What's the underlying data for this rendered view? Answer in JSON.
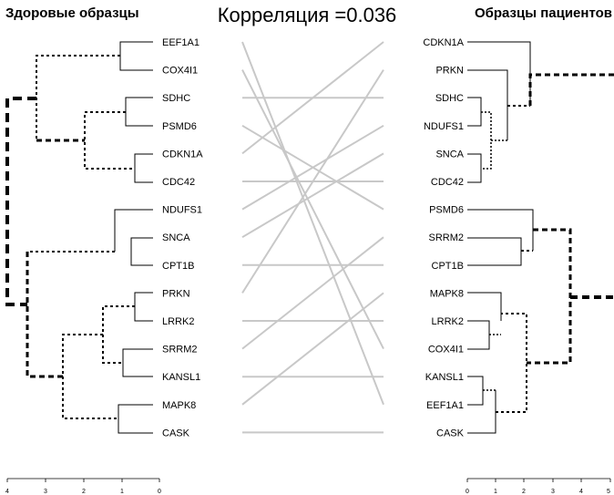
{
  "left_title": "Здоровые образцы",
  "right_title": "Образцы пациентов",
  "center_title": "Корреляция =0.036",
  "left_labels": [
    "EEF1A1",
    "COX4I1",
    "SDHC",
    "PSMD6",
    "CDKN1A",
    "CDC42",
    "NDUFS1",
    "SNCA",
    "CPT1B",
    "PRKN",
    "LRRK2",
    "SRRM2",
    "KANSL1",
    "MAPK8",
    "CASK"
  ],
  "right_labels": [
    "CDKN1A",
    "PRKN",
    "SDHC",
    "NDUFS1",
    "SNCA",
    "CDC42",
    "PSMD6",
    "SRRM2",
    "CPT1B",
    "MAPK8",
    "LRRK2",
    "COX4I1",
    "KANSL1",
    "EEF1A1",
    "CASK"
  ],
  "left_axis_ticks": [
    "4",
    "3",
    "2",
    "1",
    "0"
  ],
  "right_axis_ticks": [
    "0",
    "1",
    "2",
    "3",
    "4",
    "5"
  ],
  "colors": {
    "connector": "#c8c8c8",
    "tree": "#000000"
  }
}
